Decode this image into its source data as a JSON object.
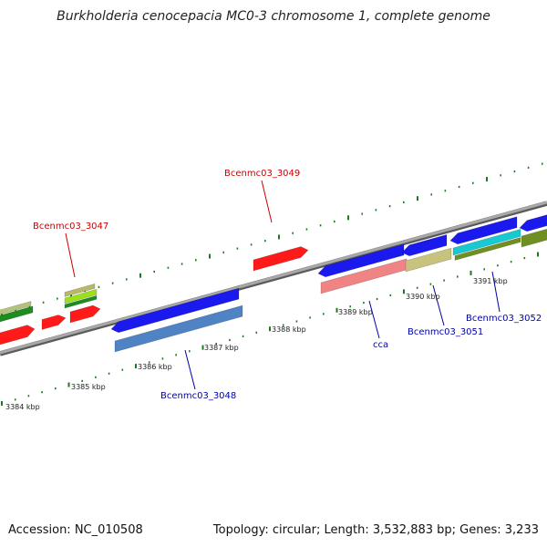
{
  "title": "Burkholderia cenocepacia MC0-3 chromosome 1, complete genome",
  "accession": "Accession: NC_010508",
  "topology": "Topology: circular; Length: 3,532,883 bp; Genes: 3,233",
  "colors": {
    "backbone": "#8c8c8c",
    "tick": "#1f7a1f",
    "gene_red": "#ff1a1a",
    "gene_blue": "#1a1aee",
    "label_red": "#cc0000",
    "label_blue": "#0000aa"
  },
  "scale_labels": [
    "3384 kbp",
    "3385 kbp",
    "3386 kbp",
    "3387 kbp",
    "3388 kbp",
    "3389 kbp",
    "3390 kbp",
    "3391 kbp"
  ],
  "gene_labels": [
    {
      "text": "Bcenmc03_3047",
      "color": "red"
    },
    {
      "text": "Bcenmc03_3049",
      "color": "red"
    },
    {
      "text": "Bcenmc03_3048",
      "color": "blue"
    },
    {
      "text": "cca",
      "color": "blue"
    },
    {
      "text": "Bcenmc03_3051",
      "color": "blue"
    },
    {
      "text": "Bcenmc03_3052",
      "color": "blue"
    }
  ]
}
